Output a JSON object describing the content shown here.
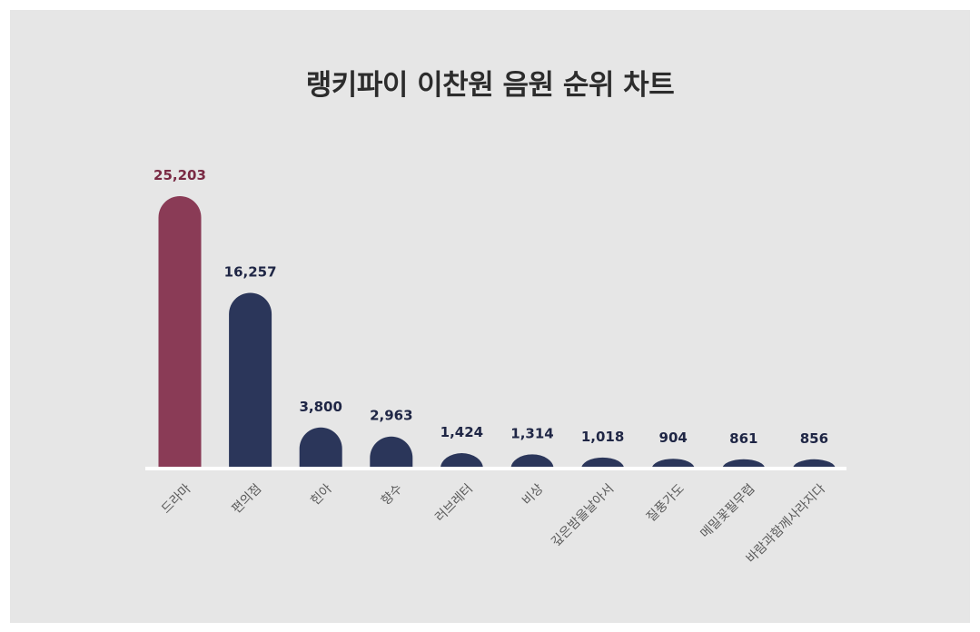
{
  "chart_data": {
    "type": "bar",
    "title": "랭키파이 이찬원 음원 순위 차트",
    "categories": [
      "드라마",
      "편의점",
      "힌아",
      "향수",
      "러브레터",
      "비상",
      "깊은밤을날아서",
      "질풍가도",
      "메밀꽃필무렵",
      "바람과함께사라지다"
    ],
    "values": [
      25203,
      16257,
      3800,
      2963,
      1424,
      1314,
      1018,
      904,
      861,
      856
    ],
    "value_labels": [
      "25,203",
      "16,257",
      "3,800",
      "2,963",
      "1,424",
      "1,314",
      "1,018",
      "904",
      "861",
      "856"
    ],
    "xlabel": "",
    "ylabel": "",
    "ylim": [
      0,
      25203
    ],
    "grid": false,
    "legend": "none",
    "colors": {
      "highlight": "#8a3b56",
      "highlight_label": "#7a2a44",
      "bar": "#2b365a",
      "bar_label": "#1f2645",
      "baseline": "#ffffff"
    }
  }
}
